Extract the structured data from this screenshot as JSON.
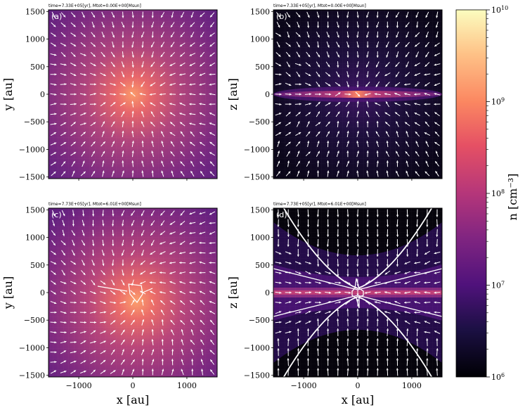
{
  "chart_data": [
    {
      "panel": "(a)",
      "type": "heatmap",
      "title": "time=7.33E+05[yr], Mtot=0.00E+00[Msun]",
      "xlabel": "",
      "ylabel": "y [au]",
      "xlim": [
        -1560,
        1560
      ],
      "ylim": [
        -1530,
        1530
      ],
      "yticks": [
        -1500,
        -1000,
        -500,
        0,
        500,
        1000,
        1500
      ],
      "xticks": [
        -1000,
        0,
        1000
      ],
      "field": "face-on density with radially infalling velocity vectors",
      "peak_density": 300000000.0,
      "background_density": 20000000.0
    },
    {
      "panel": "(b)",
      "type": "heatmap",
      "title": "time=7.33E+05[yr], Mtot=0.00E+00[Msun]",
      "xlabel": "",
      "ylabel": "z [au]",
      "xlim": [
        -1560,
        1560
      ],
      "ylim": [
        -1530,
        1530
      ],
      "yticks": [
        -1500,
        -1000,
        -500,
        0,
        500,
        1000,
        1500
      ],
      "xticks": [
        -1000,
        0,
        1000
      ],
      "field": "edge-on density, thin midplane disk, infall vectors",
      "peak_density": 200000000.0,
      "background_density": 1500000.0
    },
    {
      "panel": "(c)",
      "type": "heatmap",
      "title": "time=7.73E+05[yr], Mtot=6.01E+00[Msun]",
      "xlabel": "x [au]",
      "ylabel": "y [au]",
      "xlim": [
        -1560,
        1560
      ],
      "ylim": [
        -1530,
        1530
      ],
      "yticks": [
        -1500,
        -1000,
        -500,
        0,
        500,
        1000,
        1500
      ],
      "xticks": [
        -1000,
        0,
        1000
      ],
      "xticklabels": [
        "−1000",
        "0",
        "1000"
      ],
      "field": "face-on density after sink formation, swirling vectors",
      "peak_density": 400000000.0,
      "background_density": 20000000.0
    },
    {
      "panel": "(d)",
      "type": "heatmap",
      "title": "time=7.73E+05[yr], Mtot=6.01E+00[Msun]",
      "xlabel": "x [au]",
      "ylabel": "z [au]",
      "xlim": [
        -1560,
        1560
      ],
      "ylim": [
        -1530,
        1530
      ],
      "yticks": [
        -1500,
        -1000,
        -500,
        0,
        500,
        1000,
        1500
      ],
      "xticks": [
        -1000,
        0,
        1000
      ],
      "xticklabels": [
        "−1000",
        "0",
        "1000"
      ],
      "field": "edge-on density with bipolar outflow cavity (white contour)",
      "peak_density": 150000000.0,
      "background_density": 1000000.0
    }
  ],
  "colorbar": {
    "label": "n [cm⁻³]",
    "label_html": "n [cm<tspan baseline-shift='super' font-size='10'>−3</tspan>]",
    "scale": "log",
    "vmin": 1000000.0,
    "vmax": 10000000000.0,
    "colormap": "magma",
    "ticks": [
      {
        "value": 1000000.0,
        "base": "10",
        "exp": "6"
      },
      {
        "value": 10000000.0,
        "base": "10",
        "exp": "7"
      },
      {
        "value": 100000000.0,
        "base": "10",
        "exp": "8"
      },
      {
        "value": 1000000000.0,
        "base": "10",
        "exp": "9"
      },
      {
        "value": 10000000000.0,
        "base": "10",
        "exp": "10"
      }
    ]
  },
  "ytick_labels": [
    "−1500",
    "−1000",
    "−500",
    "0",
    "500",
    "1000",
    "1500"
  ],
  "xtick_labels": [
    "−1000",
    "0",
    "1000"
  ],
  "labels": {
    "y_au": "y [au]",
    "z_au": "z [au]",
    "x_au": "x [au]"
  }
}
